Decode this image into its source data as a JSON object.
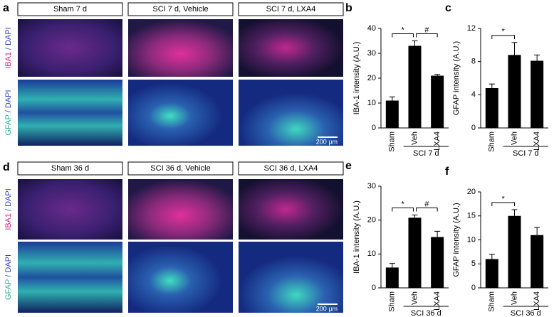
{
  "panels": [
    {
      "label": "a",
      "columns": [
        "Sham 7 d",
        "SCI 7 d, Vehicle",
        "SCI 7 d, LXA4"
      ],
      "rows": [
        [
          "IBA1",
          "/",
          "DAPI"
        ],
        [
          "GFAP",
          "/",
          "DAPI"
        ]
      ],
      "scale_bar": "200 µm"
    },
    {
      "label": "d",
      "columns": [
        "Sham 36 d",
        "SCI 36 d, Vehicle",
        "SCI 36 d, LXA4"
      ],
      "rows": [
        [
          "IBA1",
          "/",
          "DAPI"
        ],
        [
          "GFAP",
          "/",
          "DAPI"
        ]
      ],
      "scale_bar": "200 µm"
    }
  ],
  "chart_data": [
    {
      "type": "bar",
      "label": "b",
      "ylabel": "IBA-1 intensity (A.U.)",
      "categories": [
        "Sham",
        "Veh",
        "LXA4"
      ],
      "values": [
        11,
        33,
        21
      ],
      "errors": [
        1.5,
        2,
        0.5
      ],
      "color": "#000000",
      "ylim": [
        0,
        40
      ],
      "yticks": [
        0,
        10,
        20,
        30,
        40
      ],
      "group": {
        "label": "SCI 7 d",
        "categories": [
          "Veh",
          "LXA4"
        ]
      },
      "annotations": [
        {
          "text": "*",
          "between": [
            "Sham",
            "Veh"
          ]
        },
        {
          "text": "#",
          "between": [
            "Veh",
            "LXA4"
          ]
        }
      ]
    },
    {
      "type": "bar",
      "label": "c",
      "ylabel": "GFAP intensity (A.U.)",
      "categories": [
        "Sham",
        "Veh",
        "LXA4"
      ],
      "values": [
        4.8,
        8.8,
        8.1
      ],
      "errors": [
        0.5,
        1.5,
        0.7
      ],
      "color": "#000000",
      "ylim": [
        0,
        12
      ],
      "yticks": [
        0,
        4,
        8,
        12
      ],
      "group": {
        "label": "SCI 7 d",
        "categories": [
          "Veh",
          "LXA4"
        ]
      },
      "annotations": [
        {
          "text": "*",
          "between": [
            "Sham",
            "Veh"
          ]
        }
      ]
    },
    {
      "type": "bar",
      "label": "e",
      "ylabel": "IBA-1 intensity (A.U.)",
      "categories": [
        "Sham",
        "Veh",
        "LXA4"
      ],
      "values": [
        6,
        20.7,
        15
      ],
      "errors": [
        1.2,
        0.8,
        1.7
      ],
      "color": "#000000",
      "ylim": [
        0,
        30
      ],
      "yticks": [
        0,
        10,
        20,
        30
      ],
      "group": {
        "label": "SCI 36 d",
        "categories": [
          "Veh",
          "LXA4"
        ]
      },
      "annotations": [
        {
          "text": "*",
          "between": [
            "Sham",
            "Veh"
          ]
        },
        {
          "text": "#",
          "between": [
            "Veh",
            "LXA4"
          ]
        }
      ]
    },
    {
      "type": "bar",
      "label": "f",
      "ylabel": "GFAP intensity (A.U.)",
      "categories": [
        "Sham",
        "Veh",
        "LXA4"
      ],
      "values": [
        6,
        15,
        11
      ],
      "errors": [
        1,
        1.3,
        1.6
      ],
      "color": "#000000",
      "ylim": [
        0,
        20
      ],
      "yticks": [
        0,
        5,
        10,
        15,
        20
      ],
      "group": {
        "label": "SCI 36 d",
        "categories": [
          "Veh",
          "LXA4"
        ]
      },
      "annotations": [
        {
          "text": "*",
          "between": [
            "Sham",
            "Veh"
          ]
        }
      ]
    }
  ]
}
